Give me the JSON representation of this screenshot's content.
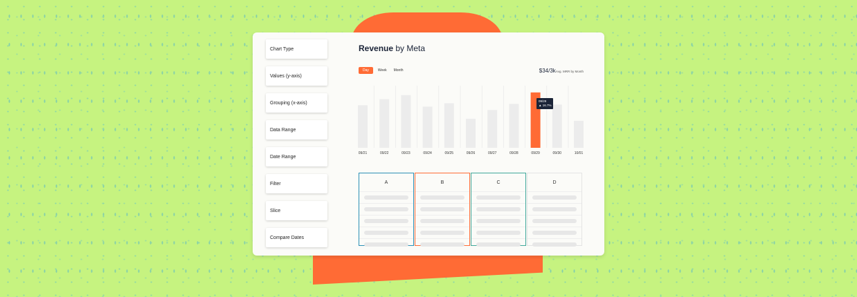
{
  "sidebar": {
    "items": [
      {
        "label": "Chart Type"
      },
      {
        "label": "Values (y-axis)"
      },
      {
        "label": "Grouping (x-axis)"
      },
      {
        "label": "Data Range"
      },
      {
        "label": "Date Range"
      },
      {
        "label": "Filter"
      },
      {
        "label": "Slice"
      },
      {
        "label": "Compare Dates"
      }
    ]
  },
  "header": {
    "title_bold": "Revenue",
    "title_rest": " by Meta"
  },
  "toggles": [
    "Day",
    "Week",
    "Month"
  ],
  "summary": {
    "value": "$34/3k",
    "note": "Avg. MRR by Month"
  },
  "tooltip": {
    "date": "09/29",
    "change": "▲ 16.7%"
  },
  "colors": {
    "accent": "#ff6b35",
    "background": "#c6f380",
    "bar": "#ececec",
    "text": "#1b2438"
  },
  "chart_data": {
    "type": "bar",
    "categories": [
      "09/21",
      "09/22",
      "09/23",
      "09/24",
      "09/25",
      "09/26",
      "09/27",
      "09/28",
      "09/29",
      "09/30",
      "10/01"
    ],
    "values": [
      63,
      72,
      78,
      61,
      66,
      43,
      56,
      65,
      82,
      64,
      40
    ],
    "highlight": "09/29",
    "ylim": [
      0,
      90
    ],
    "grid": true
  },
  "table": {
    "columns": [
      {
        "label": "A",
        "border": "#2a8fb5"
      },
      {
        "label": "B",
        "border": "#ff6b35"
      },
      {
        "label": "C",
        "border": "#3fa89a"
      },
      {
        "label": "D",
        "border": "#e4e4e4"
      }
    ],
    "row_count": 5
  }
}
